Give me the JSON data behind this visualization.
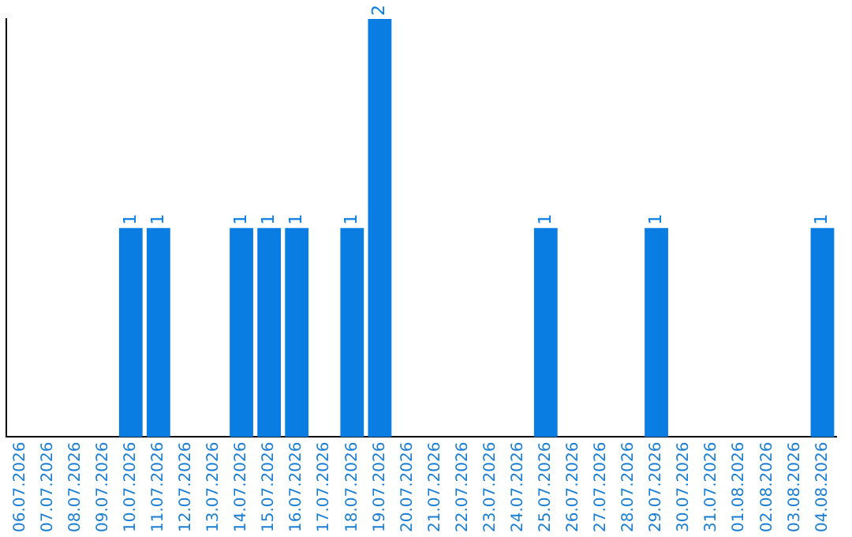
{
  "chart_data": {
    "type": "bar",
    "categories": [
      "06.07.2026",
      "07.07.2026",
      "08.07.2026",
      "09.07.2026",
      "10.07.2026",
      "11.07.2026",
      "12.07.2026",
      "13.07.2026",
      "14.07.2026",
      "15.07.2026",
      "16.07.2026",
      "17.07.2026",
      "18.07.2026",
      "19.07.2026",
      "20.07.2026",
      "21.07.2026",
      "22.07.2026",
      "23.07.2026",
      "24.07.2026",
      "25.07.2026",
      "26.07.2026",
      "27.07.2026",
      "28.07.2026",
      "29.07.2026",
      "30.07.2026",
      "31.07.2026",
      "01.08.2026",
      "02.08.2026",
      "03.08.2026",
      "04.08.2026"
    ],
    "values": [
      0,
      0,
      0,
      0,
      1,
      1,
      0,
      0,
      1,
      1,
      1,
      0,
      1,
      2,
      0,
      0,
      0,
      0,
      0,
      1,
      0,
      0,
      0,
      1,
      0,
      0,
      0,
      0,
      0,
      1
    ],
    "value_labels": [
      null,
      null,
      null,
      null,
      "1",
      "1",
      null,
      null,
      "1",
      "1",
      "1",
      null,
      "1",
      "2",
      null,
      null,
      null,
      null,
      null,
      "1",
      null,
      null,
      null,
      "1",
      null,
      null,
      null,
      null,
      null,
      "1"
    ],
    "color": "#0a7de2",
    "grid": false,
    "legend": false,
    "tick_labels": "x"
  }
}
